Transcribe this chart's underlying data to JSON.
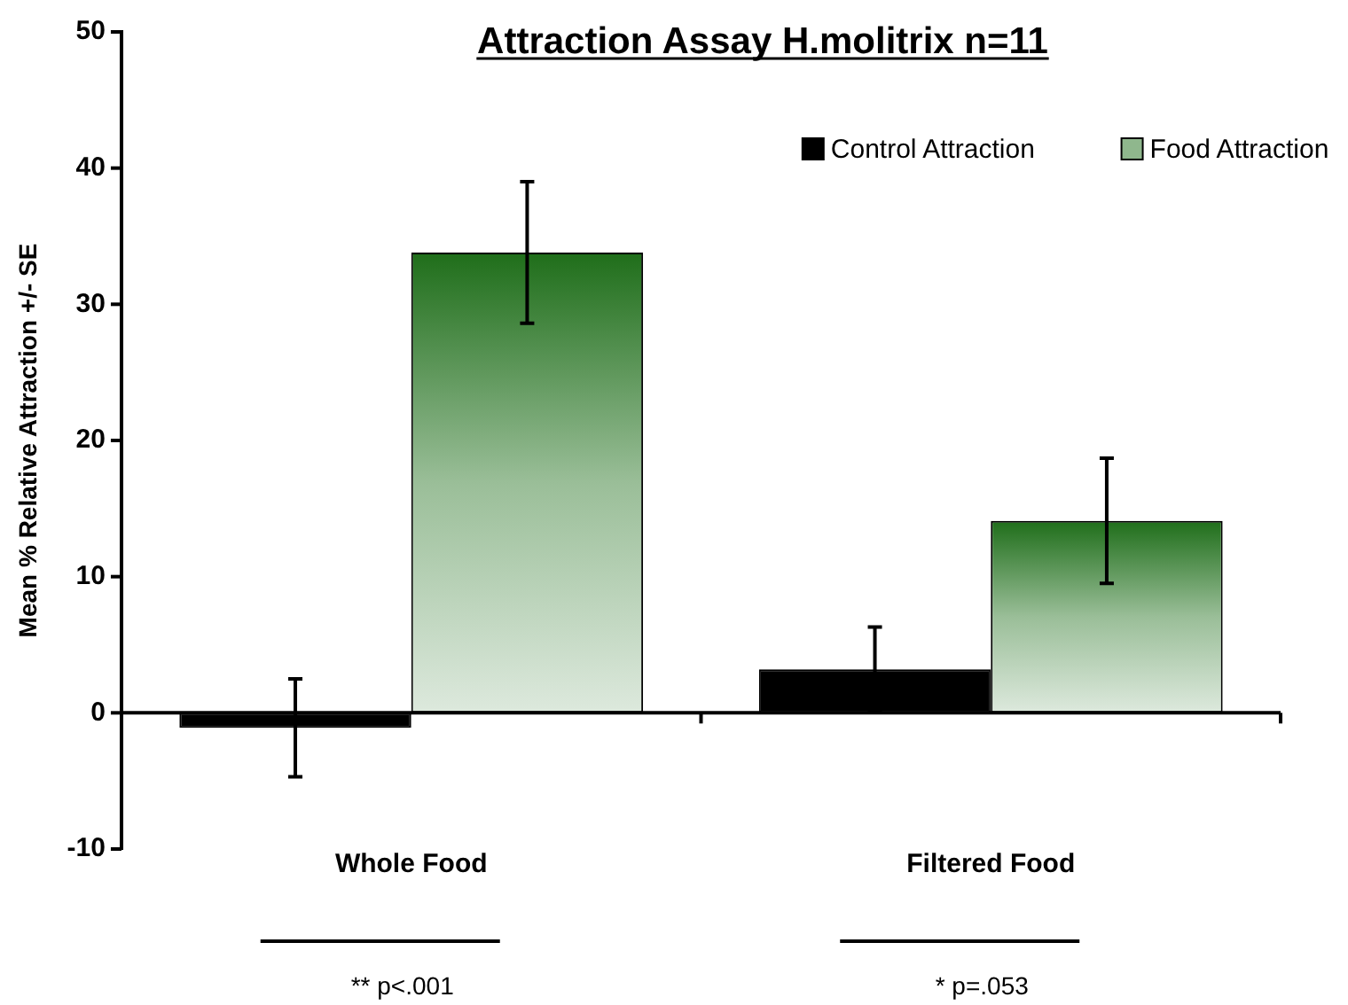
{
  "chart_data": {
    "type": "bar",
    "title": "Attraction Assay H.molitrix n=11",
    "ylabel": "Mean % Relative Attraction +/- SE",
    "categories": [
      "Whole Food",
      "Filtered Food"
    ],
    "series": [
      {
        "name": "Control Attraction",
        "color": "#000000",
        "values": [
          -1.1,
          3.2
        ],
        "errors": [
          3.6,
          3.1
        ]
      },
      {
        "name": "Food Attraction",
        "color": "#1f6e1a",
        "values": [
          33.8,
          14.1
        ],
        "errors": [
          5.2,
          4.6
        ]
      }
    ],
    "ylim": [
      -10,
      50
    ],
    "yticks": [
      -10,
      0,
      10,
      20,
      30,
      40,
      50
    ],
    "legend": "top right",
    "annotations": [
      "** p<.001",
      "* p=.053"
    ]
  }
}
